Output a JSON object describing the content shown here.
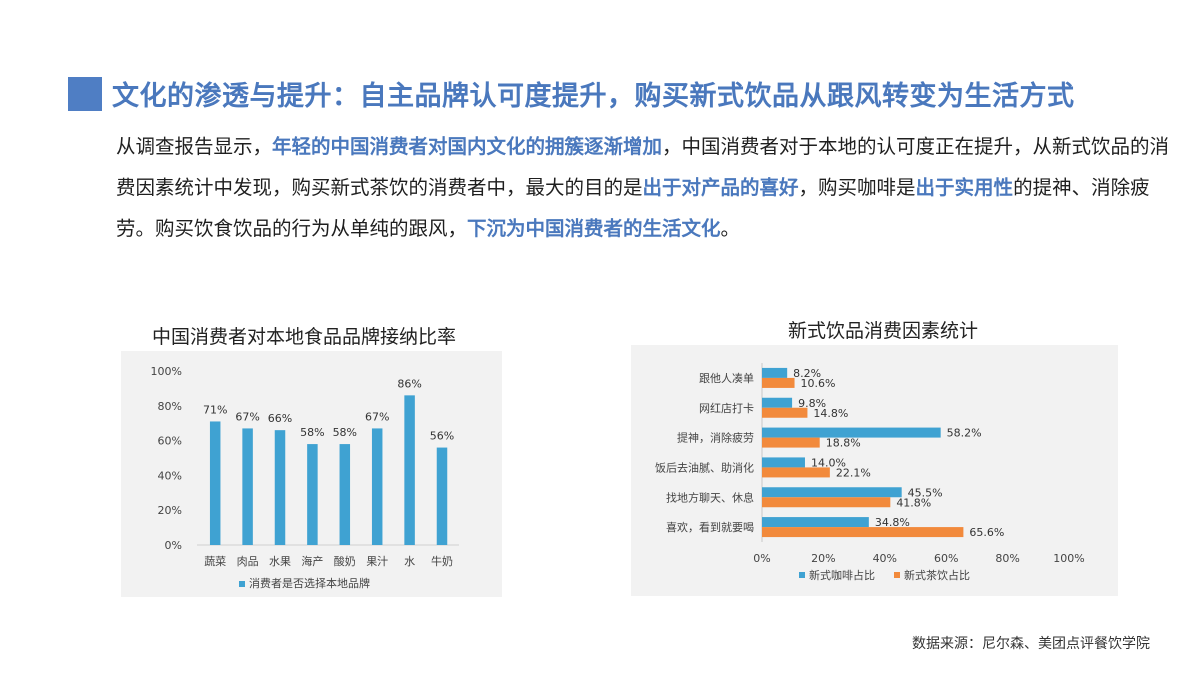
{
  "header": {
    "title": "文化的渗透与提升：自主品牌认可度提升，购买新式饮品从跟风转变为生活方式"
  },
  "paragraph": {
    "p1": "从调查报告显示，",
    "h1": "年轻的中国消费者对国内文化的拥簇逐渐增加",
    "p2": "，中国消费者对于本地的认可度正在提升，从新式饮品的消费因素统计中发现，购买新式茶饮的消费者中，最大的目的是",
    "h2": "出于对产品的喜好",
    "p3": "，购买咖啡是",
    "h3": "出于实用性",
    "p4": "的提神、消除疲劳。购买饮食饮品的行为从单纯的跟风，",
    "h4": "下沉为中国消费者的生活文化",
    "p5": "。"
  },
  "chart_data": [
    {
      "type": "bar",
      "title": "中国消费者对本地食品品牌接纳比率",
      "categories": [
        "蔬菜",
        "肉品",
        "水果",
        "海产",
        "酸奶",
        "果汁",
        "水",
        "牛奶"
      ],
      "series": [
        {
          "name": "消费者是否选择本地品牌",
          "values": [
            71,
            67,
            66,
            58,
            58,
            67,
            86,
            56
          ],
          "color": "#3fa2d2"
        }
      ],
      "value_labels": [
        "71%",
        "67%",
        "66%",
        "58%",
        "58%",
        "67%",
        "86%",
        "56%"
      ],
      "ylim": [
        0,
        100
      ],
      "yticks": [
        "0%",
        "20%",
        "40%",
        "60%",
        "80%",
        "100%"
      ],
      "legend_position": "bottom",
      "grid": false
    },
    {
      "type": "bar",
      "orientation": "horizontal",
      "title": "新式饮品消费因素统计",
      "categories": [
        "跟他人凑单",
        "网红店打卡",
        "提神，消除疲劳",
        "饭后去油腻、助消化",
        "找地方聊天、休息",
        "喜欢，看到就要喝"
      ],
      "series": [
        {
          "name": "新式咖啡占比",
          "values": [
            8.2,
            9.8,
            58.2,
            14.0,
            45.5,
            34.8
          ],
          "color": "#3fa2d2",
          "value_labels": [
            "8.2%",
            "9.8%",
            "58.2%",
            "14.0%",
            "45.5%",
            "34.8%"
          ]
        },
        {
          "name": "新式茶饮占比",
          "values": [
            10.6,
            14.8,
            18.8,
            22.1,
            41.8,
            65.6
          ],
          "color": "#f28a3c",
          "value_labels": [
            "10.6%",
            "14.8%",
            "18.8%",
            "22.1%",
            "41.8%",
            "65.6%"
          ]
        }
      ],
      "xlim": [
        0,
        100
      ],
      "xticks": [
        "0%",
        "20%",
        "40%",
        "60%",
        "80%",
        "100%"
      ],
      "legend_position": "bottom",
      "grid": false
    }
  ],
  "footer": {
    "source": "数据来源：尼尔森、美团点评餐饮学院"
  }
}
